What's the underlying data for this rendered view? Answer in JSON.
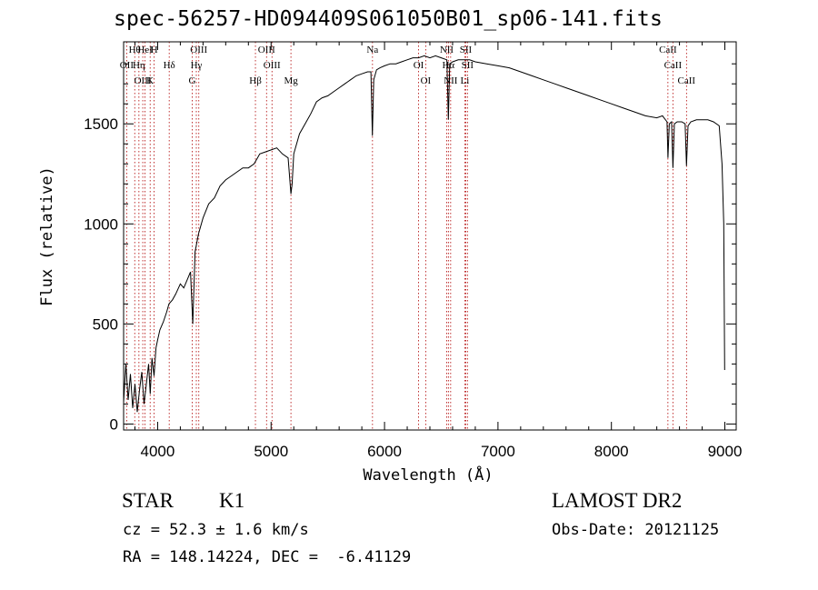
{
  "page": {
    "title": "spec-56257-HD094409S061050B01_sp06-141.fits",
    "class_label": "STAR",
    "subclass_label": "K1",
    "survey": "LAMOST DR2",
    "velocity": "cz = 52.3 ± 1.6 km/s",
    "obs_date": "Obs-Date: 20121125",
    "coords": "RA = 148.14224, DEC =  -6.41129"
  },
  "colors": {
    "axis": "#000000",
    "spectrum": "#000000",
    "line_marker": "#b00000",
    "background": "#ffffff"
  },
  "chart_data": {
    "type": "line",
    "title": "spec-56257-HD094409S061050B01_sp06-141.fits",
    "xlabel": "Wavelength (Å)",
    "ylabel": "Flux (relative)",
    "xlim": [
      3700,
      9100
    ],
    "ylim": [
      -30,
      1910
    ],
    "x_ticks": [
      4000,
      5000,
      6000,
      7000,
      8000,
      9000
    ],
    "x_tick_labels": [
      "4000",
      "5000",
      "6000",
      "7000",
      "8000",
      "9000"
    ],
    "y_ticks": [
      0,
      500,
      1000,
      1500
    ],
    "y_tick_labels": [
      "0",
      "500",
      "1000",
      "1500"
    ],
    "grid": false,
    "series": [
      {
        "x": [
          3700,
          3720,
          3740,
          3760,
          3780,
          3800,
          3820,
          3840,
          3860,
          3880,
          3900,
          3920,
          3935,
          3950,
          3968,
          3985,
          4000,
          4020,
          4050,
          4080,
          4100,
          4130,
          4160,
          4200,
          4230,
          4260,
          4290,
          4310,
          4330,
          4360,
          4400,
          4450,
          4500,
          4550,
          4600,
          4650,
          4700,
          4750,
          4800,
          4850,
          4880,
          4900,
          4950,
          5000,
          5050,
          5100,
          5150,
          5175,
          5185,
          5200,
          5250,
          5300,
          5350,
          5400,
          5450,
          5500,
          5550,
          5600,
          5650,
          5700,
          5750,
          5800,
          5850,
          5880,
          5893,
          5905,
          5930,
          5960,
          6000,
          6050,
          6100,
          6150,
          6200,
          6250,
          6300,
          6350,
          6400,
          6450,
          6500,
          6550,
          6563,
          6575,
          6600,
          6650,
          6700,
          6750,
          6800,
          6900,
          7000,
          7100,
          7200,
          7300,
          7400,
          7500,
          7600,
          7700,
          7800,
          7900,
          8000,
          8100,
          8200,
          8300,
          8400,
          8450,
          8490,
          8498,
          8510,
          8530,
          8542,
          8555,
          8580,
          8620,
          8650,
          8662,
          8675,
          8700,
          8750,
          8800,
          8850,
          8900,
          8950,
          8975,
          8990,
          8998
        ],
        "y": [
          110,
          300,
          120,
          250,
          80,
          200,
          60,
          170,
          260,
          100,
          200,
          300,
          150,
          330,
          240,
          380,
          420,
          470,
          510,
          560,
          600,
          620,
          650,
          700,
          680,
          720,
          760,
          500,
          860,
          950,
          1030,
          1100,
          1130,
          1190,
          1220,
          1240,
          1260,
          1280,
          1280,
          1300,
          1330,
          1350,
          1360,
          1370,
          1380,
          1350,
          1330,
          1150,
          1200,
          1350,
          1450,
          1500,
          1550,
          1610,
          1630,
          1640,
          1660,
          1680,
          1700,
          1720,
          1740,
          1750,
          1760,
          1760,
          1440,
          1720,
          1770,
          1780,
          1790,
          1800,
          1800,
          1810,
          1820,
          1830,
          1830,
          1840,
          1830,
          1840,
          1830,
          1820,
          1520,
          1800,
          1810,
          1820,
          1820,
          1820,
          1810,
          1800,
          1790,
          1780,
          1760,
          1740,
          1720,
          1700,
          1680,
          1660,
          1640,
          1620,
          1600,
          1580,
          1560,
          1540,
          1530,
          1540,
          1510,
          1330,
          1500,
          1510,
          1280,
          1500,
          1510,
          1510,
          1500,
          1290,
          1490,
          1510,
          1520,
          1520,
          1520,
          1510,
          1490,
          1300,
          1000,
          270
        ]
      }
    ],
    "line_markers": [
      {
        "label": "Hθ",
        "wavelength": 3798
      },
      {
        "label": "OII",
        "wavelength": 3727
      },
      {
        "label": "OIII",
        "wavelength": 3869
      },
      {
        "label": "HeI",
        "wavelength": 3889
      },
      {
        "label": "Hη",
        "wavelength": 3835
      },
      {
        "label": "K",
        "wavelength": 3934
      },
      {
        "label": "H",
        "wavelength": 3969
      },
      {
        "label": "Hδ",
        "wavelength": 4102
      },
      {
        "label": "G",
        "wavelength": 4305
      },
      {
        "label": "OIII",
        "wavelength": 4363
      },
      {
        "label": "Hγ",
        "wavelength": 4341
      },
      {
        "label": "Hβ",
        "wavelength": 4862
      },
      {
        "label": "OIII",
        "wavelength": 4960
      },
      {
        "label": "OIII",
        "wavelength": 5008
      },
      {
        "label": "Mg",
        "wavelength": 5175
      },
      {
        "label": "Na",
        "wavelength": 5894
      },
      {
        "label": "OI",
        "wavelength": 6300
      },
      {
        "label": "OI",
        "wavelength": 6363
      },
      {
        "label": "NII",
        "wavelength": 6548
      },
      {
        "label": "Hα",
        "wavelength": 6563
      },
      {
        "label": "NII",
        "wavelength": 6583
      },
      {
        "label": "SII",
        "wavelength": 6716
      },
      {
        "label": "SII",
        "wavelength": 6731
      },
      {
        "label": "Li",
        "wavelength": 6708
      },
      {
        "label": "CaII",
        "wavelength": 8498
      },
      {
        "label": "CaII",
        "wavelength": 8542
      },
      {
        "label": "CaII",
        "wavelength": 8662
      }
    ]
  }
}
